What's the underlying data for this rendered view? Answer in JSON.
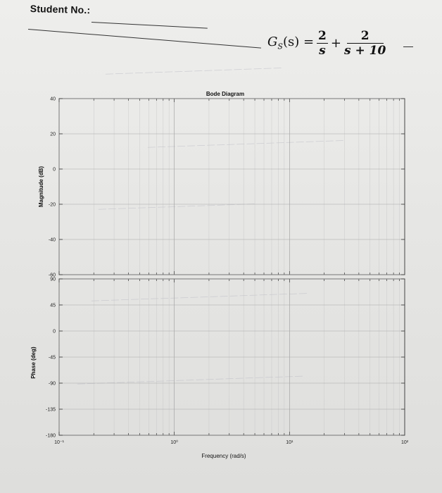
{
  "header": {
    "student_label": "Student No.:"
  },
  "formula": {
    "lhs": "G",
    "lhs_sub": "S",
    "lhs_arg": "(s) =",
    "term1_num": "2",
    "term1_den": "s",
    "plus": "+",
    "term2_num": "2",
    "term2_den": "s + 10"
  },
  "plot": {
    "title": "Bode Diagram",
    "magnitude_label": "Magnitude (dB)",
    "phase_label": "Phase (deg)",
    "xlabel": "Frequency (rad/s)",
    "magnitude_ticks": [
      "40",
      "20",
      "0",
      "-20",
      "-40",
      "-60"
    ],
    "phase_ticks": [
      "90",
      "45",
      "0",
      "-45",
      "-90",
      "-135",
      "-180"
    ],
    "freq_ticks": [
      "10⁻¹",
      "10⁰",
      "10¹",
      "10²"
    ]
  },
  "chart_data": [
    {
      "type": "line",
      "title": "Bode Diagram",
      "ylabel": "Magnitude (dB)",
      "xlabel": "",
      "x_scale": "log",
      "xlim": [
        0.1,
        100
      ],
      "ylim": [
        -60,
        40
      ],
      "yticks": [
        40,
        20,
        0,
        -20,
        -40,
        -60
      ],
      "grid": true,
      "series": []
    },
    {
      "type": "line",
      "ylabel": "Phase (deg)",
      "xlabel": "Frequency (rad/s)",
      "x_scale": "log",
      "xlim": [
        0.1,
        100
      ],
      "ylim": [
        -180,
        90
      ],
      "yticks": [
        90,
        45,
        0,
        -45,
        -90,
        -135,
        -180
      ],
      "grid": true,
      "series": []
    }
  ]
}
